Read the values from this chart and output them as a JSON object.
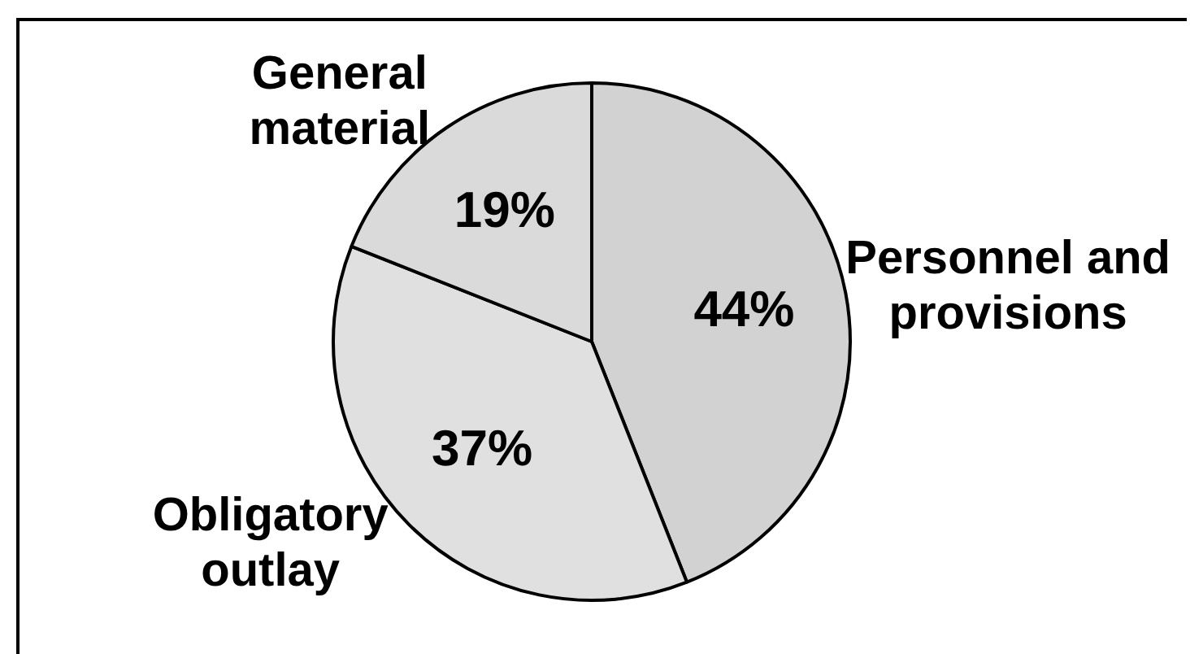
{
  "chart_data": {
    "type": "pie",
    "categories": [
      "Personnel and provisions",
      "Obligatory outlay",
      "General material"
    ],
    "values": [
      44,
      37,
      19
    ],
    "colors": [
      "#d2d2d2",
      "#e0e0e0",
      "#dadada"
    ],
    "value_labels": [
      "44%",
      "37%",
      "19%"
    ]
  }
}
